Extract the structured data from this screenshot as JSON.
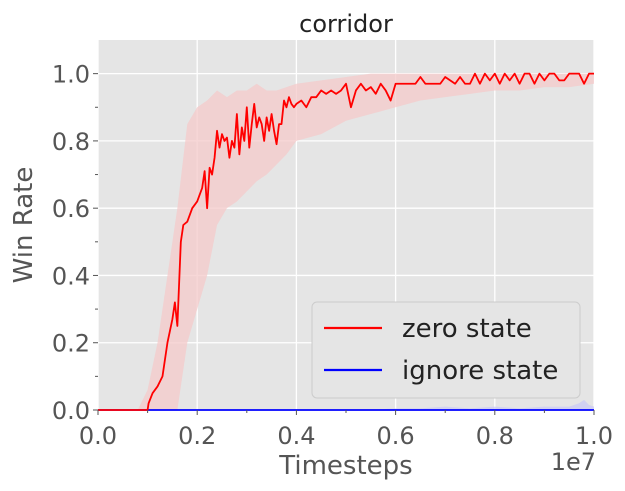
{
  "chart_data": {
    "type": "line",
    "title": "corridor",
    "xlabel": "Timesteps",
    "ylabel": "Win Rate",
    "x_scale_label": "1e7",
    "xlim": [
      0,
      1.0
    ],
    "ylim": [
      0,
      1.1
    ],
    "x_ticks": [
      "0.0",
      "0.2",
      "0.4",
      "0.6",
      "0.8",
      "1.0"
    ],
    "y_ticks": [
      "0.0",
      "0.2",
      "0.4",
      "0.6",
      "0.8",
      "1.0"
    ],
    "grid": true,
    "legend_position": "lower-right",
    "colors": {
      "background": "#e5e5e5",
      "grid": "#ffffff",
      "zero_state": "#ff0000",
      "zero_state_band": "#f4c9c9",
      "ignore_state": "#0000ff",
      "ignore_state_band": "#c9c9f4"
    },
    "series": [
      {
        "name": "zero state",
        "color": "#ff0000",
        "x": [
          0.0,
          0.05,
          0.1,
          0.102,
          0.11,
          0.12,
          0.13,
          0.14,
          0.15,
          0.155,
          0.16,
          0.167,
          0.172,
          0.18,
          0.19,
          0.2,
          0.205,
          0.21,
          0.215,
          0.22,
          0.225,
          0.23,
          0.235,
          0.24,
          0.245,
          0.25,
          0.255,
          0.26,
          0.265,
          0.27,
          0.275,
          0.28,
          0.285,
          0.29,
          0.295,
          0.3,
          0.305,
          0.31,
          0.315,
          0.32,
          0.325,
          0.33,
          0.335,
          0.34,
          0.345,
          0.35,
          0.355,
          0.36,
          0.365,
          0.37,
          0.375,
          0.38,
          0.385,
          0.39,
          0.395,
          0.4,
          0.41,
          0.42,
          0.43,
          0.44,
          0.45,
          0.46,
          0.47,
          0.48,
          0.49,
          0.5,
          0.51,
          0.52,
          0.53,
          0.54,
          0.55,
          0.56,
          0.57,
          0.58,
          0.59,
          0.6,
          0.61,
          0.62,
          0.63,
          0.64,
          0.65,
          0.66,
          0.67,
          0.68,
          0.69,
          0.7,
          0.71,
          0.72,
          0.73,
          0.74,
          0.75,
          0.76,
          0.77,
          0.78,
          0.79,
          0.8,
          0.81,
          0.82,
          0.83,
          0.84,
          0.85,
          0.86,
          0.87,
          0.88,
          0.89,
          0.9,
          0.91,
          0.92,
          0.93,
          0.94,
          0.95,
          0.96,
          0.97,
          0.98,
          0.99,
          1.0
        ],
        "values": [
          0.0,
          0.0,
          0.0,
          0.02,
          0.05,
          0.07,
          0.1,
          0.2,
          0.27,
          0.32,
          0.25,
          0.5,
          0.55,
          0.56,
          0.6,
          0.62,
          0.64,
          0.66,
          0.71,
          0.6,
          0.72,
          0.7,
          0.75,
          0.83,
          0.78,
          0.82,
          0.8,
          0.81,
          0.75,
          0.8,
          0.78,
          0.88,
          0.76,
          0.84,
          0.8,
          0.9,
          0.78,
          0.85,
          0.91,
          0.84,
          0.87,
          0.85,
          0.8,
          0.87,
          0.83,
          0.88,
          0.83,
          0.79,
          0.85,
          0.85,
          0.92,
          0.9,
          0.93,
          0.91,
          0.9,
          0.91,
          0.92,
          0.9,
          0.93,
          0.93,
          0.95,
          0.94,
          0.95,
          0.94,
          0.95,
          0.97,
          0.9,
          0.95,
          0.97,
          0.95,
          0.96,
          0.94,
          0.97,
          0.95,
          0.92,
          0.97,
          0.97,
          0.97,
          0.97,
          0.97,
          0.99,
          0.97,
          0.97,
          0.97,
          0.97,
          0.99,
          0.98,
          0.97,
          0.99,
          0.97,
          0.97,
          1.0,
          0.97,
          1.0,
          0.98,
          1.0,
          0.97,
          1.0,
          0.98,
          1.0,
          0.97,
          1.0,
          1.0,
          0.97,
          1.0,
          0.98,
          1.0,
          1.0,
          0.98,
          0.98,
          1.0,
          1.0,
          1.0,
          0.97,
          1.0,
          1.0
        ],
        "band_x": [
          0.0,
          0.08,
          0.1,
          0.12,
          0.14,
          0.16,
          0.18,
          0.2,
          0.22,
          0.24,
          0.26,
          0.28,
          0.3,
          0.32,
          0.34,
          0.36,
          0.38,
          0.4,
          0.45,
          0.5,
          0.55,
          0.6,
          0.65,
          0.7,
          0.75,
          0.8,
          0.85,
          0.9,
          0.95,
          1.0
        ],
        "band_upper": [
          0.0,
          0.0,
          0.06,
          0.2,
          0.4,
          0.6,
          0.85,
          0.9,
          0.92,
          0.95,
          0.93,
          0.95,
          0.95,
          0.97,
          0.95,
          0.95,
          0.96,
          0.97,
          0.98,
          0.99,
          1.0,
          1.0,
          1.0,
          1.0,
          1.0,
          1.0,
          1.0,
          1.0,
          1.0,
          1.0
        ],
        "band_lower": [
          0.0,
          0.0,
          0.0,
          0.0,
          0.0,
          0.0,
          0.2,
          0.3,
          0.4,
          0.55,
          0.6,
          0.62,
          0.65,
          0.68,
          0.7,
          0.73,
          0.76,
          0.8,
          0.82,
          0.86,
          0.88,
          0.9,
          0.92,
          0.93,
          0.94,
          0.95,
          0.95,
          0.96,
          0.96,
          0.97
        ]
      },
      {
        "name": "ignore state",
        "color": "#0000ff",
        "x": [
          0.0,
          0.5,
          1.0
        ],
        "values": [
          0.0,
          0.0,
          0.0
        ],
        "band_x": [
          0.0,
          0.55,
          0.6,
          0.65,
          0.7,
          0.75,
          0.8,
          0.85,
          0.9,
          0.95,
          0.97,
          0.98,
          0.99,
          1.0
        ],
        "band_upper": [
          0.0,
          0.0,
          0.005,
          0.005,
          0.01,
          0.005,
          0.01,
          0.005,
          0.01,
          0.01,
          0.02,
          0.03,
          0.015,
          0.01
        ],
        "band_lower": [
          0.0,
          0.0,
          0.0,
          0.0,
          0.0,
          0.0,
          0.0,
          0.0,
          0.0,
          0.0,
          0.0,
          0.0,
          0.0,
          0.0
        ]
      }
    ]
  }
}
